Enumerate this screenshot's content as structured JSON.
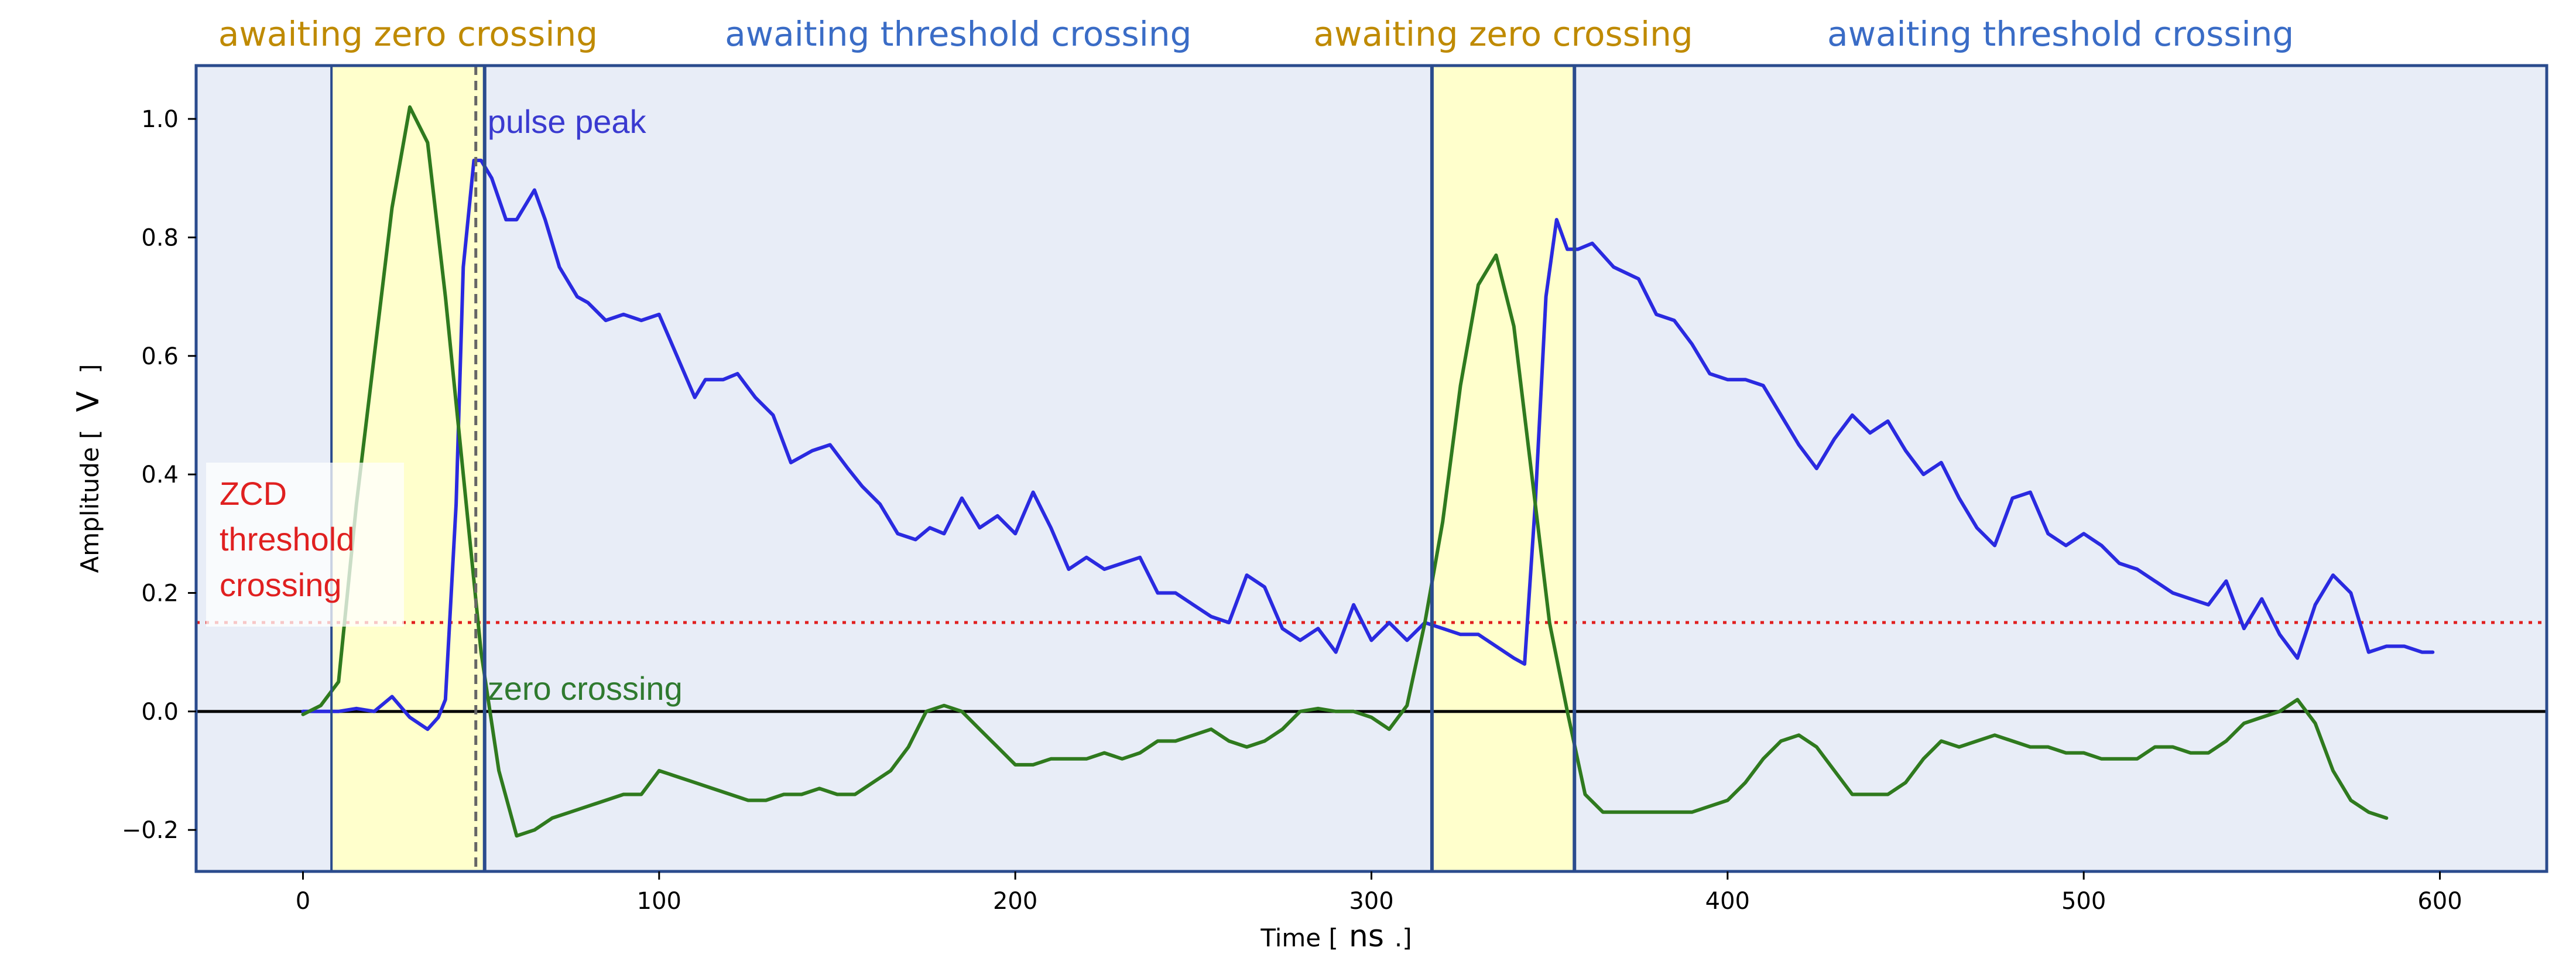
{
  "chart_data": {
    "type": "line",
    "xlabel_prefix": "Time [",
    "xlabel_unit": "ns",
    "xlabel_suffix": ".]",
    "ylabel_prefix": "Amplitude [",
    "ylabel_unit": "V",
    "ylabel_suffix": "]",
    "xlim": [
      -30,
      630
    ],
    "ylim": [
      -0.27,
      1.09
    ],
    "xticks": [
      0,
      100,
      200,
      300,
      400,
      500,
      600
    ],
    "yticks": [
      -0.2,
      0.0,
      0.2,
      0.4,
      0.6,
      0.8,
      1.0
    ],
    "ytick_labels": [
      "−0.2",
      "0.0",
      "0.2",
      "0.4",
      "0.6",
      "0.8",
      "1.0"
    ],
    "threshold": 0.15,
    "zero_line": 0.0,
    "colors": {
      "background": "#e8edf7",
      "highlight": "#ffffcc",
      "frame": "#2a4b8d",
      "blue_series": "#2a2ae0",
      "green_series": "#2f7a1e",
      "threshold": "#e02020",
      "zero_line": "#000000",
      "zero_state": "#bf8a00",
      "threshold_state": "#3a6cc6",
      "pulse_peak": "#3a3ad0",
      "zero_crossing": "#2f7a2f",
      "zcd": "#e02020"
    },
    "state_bands": [
      {
        "label": "awaiting zero crossing",
        "from": 8,
        "to": 51,
        "highlight": true,
        "kind": "zero"
      },
      {
        "label": "awaiting threshold crossing",
        "from": 51,
        "to": 317,
        "highlight": false,
        "kind": "threshold"
      },
      {
        "label": "awaiting zero crossing",
        "from": 317,
        "to": 357,
        "highlight": true,
        "kind": "zero"
      },
      {
        "label": "awaiting threshold crossing",
        "from": 357,
        "to": 630,
        "highlight": false,
        "kind": "threshold"
      }
    ],
    "vertical_lines": [
      8,
      51,
      317,
      357
    ],
    "dashed_line": 50.5,
    "annotations": {
      "pulse_peak": "pulse peak",
      "zero_crossing": "zero crossing",
      "zcd_line1": "ZCD",
      "zcd_line2": "threshold",
      "zcd_line3": "crossing"
    },
    "series": [
      {
        "color_key": "blue_series",
        "x": [
          0,
          10,
          15,
          20,
          25,
          30,
          35,
          38,
          40,
          43,
          45,
          48,
          50,
          53,
          57,
          60,
          65,
          68,
          72,
          77,
          80,
          85,
          90,
          95,
          100,
          105,
          110,
          113,
          118,
          122,
          127,
          132,
          137,
          143,
          148,
          153,
          157,
          162,
          167,
          172,
          176,
          180,
          185,
          190,
          195,
          200,
          205,
          210,
          215,
          220,
          225,
          230,
          235,
          240,
          245,
          250,
          255,
          260,
          265,
          270,
          275,
          280,
          285,
          290,
          295,
          300,
          305,
          310,
          315,
          320,
          325,
          330,
          335,
          340,
          343,
          346,
          349,
          352,
          355,
          358,
          362,
          368,
          375,
          380,
          385,
          390,
          395,
          400,
          405,
          410,
          415,
          420,
          425,
          430,
          435,
          440,
          445,
          450,
          455,
          460,
          465,
          470,
          475,
          480,
          485,
          490,
          495,
          500,
          505,
          510,
          515,
          520,
          525,
          530,
          535,
          540,
          545,
          550,
          555,
          560,
          565,
          570,
          575,
          580,
          585,
          590,
          595,
          598
        ],
        "y": [
          0.0,
          0.0,
          0.005,
          0.0,
          0.025,
          -0.01,
          -0.03,
          -0.01,
          0.02,
          0.35,
          0.75,
          0.93,
          0.93,
          0.9,
          0.83,
          0.83,
          0.88,
          0.83,
          0.75,
          0.7,
          0.69,
          0.66,
          0.67,
          0.66,
          0.67,
          0.6,
          0.53,
          0.56,
          0.56,
          0.57,
          0.53,
          0.5,
          0.42,
          0.44,
          0.45,
          0.41,
          0.38,
          0.35,
          0.3,
          0.29,
          0.31,
          0.3,
          0.36,
          0.31,
          0.33,
          0.3,
          0.37,
          0.31,
          0.24,
          0.26,
          0.24,
          0.25,
          0.26,
          0.2,
          0.2,
          0.18,
          0.16,
          0.15,
          0.23,
          0.21,
          0.14,
          0.12,
          0.14,
          0.1,
          0.18,
          0.12,
          0.15,
          0.12,
          0.15,
          0.14,
          0.13,
          0.13,
          0.11,
          0.09,
          0.08,
          0.35,
          0.7,
          0.83,
          0.78,
          0.78,
          0.79,
          0.75,
          0.73,
          0.67,
          0.66,
          0.62,
          0.57,
          0.56,
          0.56,
          0.55,
          0.5,
          0.45,
          0.41,
          0.46,
          0.5,
          0.47,
          0.49,
          0.44,
          0.4,
          0.42,
          0.36,
          0.31,
          0.28,
          0.36,
          0.37,
          0.3,
          0.28,
          0.3,
          0.28,
          0.25,
          0.24,
          0.22,
          0.2,
          0.19,
          0.18,
          0.22,
          0.14,
          0.19,
          0.13,
          0.09,
          0.18,
          0.23,
          0.2,
          0.1,
          0.11,
          0.11,
          0.1,
          0.1
        ]
      },
      {
        "color_key": "green_series",
        "x": [
          0,
          5,
          10,
          15,
          20,
          25,
          30,
          35,
          40,
          45,
          50,
          55,
          60,
          65,
          70,
          75,
          80,
          85,
          90,
          95,
          100,
          105,
          110,
          115,
          120,
          125,
          130,
          135,
          140,
          145,
          150,
          155,
          160,
          165,
          170,
          175,
          180,
          185,
          190,
          195,
          200,
          205,
          210,
          215,
          220,
          225,
          230,
          235,
          240,
          245,
          250,
          255,
          260,
          265,
          270,
          275,
          280,
          285,
          290,
          295,
          300,
          305,
          310,
          315,
          320,
          325,
          330,
          335,
          340,
          345,
          350,
          355,
          360,
          365,
          370,
          375,
          380,
          385,
          390,
          395,
          400,
          405,
          410,
          415,
          420,
          425,
          430,
          435,
          440,
          445,
          450,
          455,
          460,
          465,
          470,
          475,
          480,
          485,
          490,
          495,
          500,
          505,
          510,
          515,
          520,
          525,
          530,
          535,
          540,
          545,
          550,
          555,
          560,
          565,
          570,
          575,
          580,
          585
        ],
        "y": [
          -0.005,
          0.01,
          0.05,
          0.35,
          0.6,
          0.85,
          1.02,
          0.96,
          0.7,
          0.4,
          0.1,
          -0.1,
          -0.21,
          -0.2,
          -0.18,
          -0.17,
          -0.16,
          -0.15,
          -0.14,
          -0.14,
          -0.1,
          -0.11,
          -0.12,
          -0.13,
          -0.14,
          -0.15,
          -0.15,
          -0.14,
          -0.14,
          -0.13,
          -0.14,
          -0.14,
          -0.12,
          -0.1,
          -0.06,
          0.0,
          0.01,
          0.0,
          -0.03,
          -0.06,
          -0.09,
          -0.09,
          -0.08,
          -0.08,
          -0.08,
          -0.07,
          -0.08,
          -0.07,
          -0.05,
          -0.05,
          -0.04,
          -0.03,
          -0.05,
          -0.06,
          -0.05,
          -0.03,
          0.0,
          0.005,
          0.0,
          0.0,
          -0.01,
          -0.03,
          0.01,
          0.15,
          0.32,
          0.55,
          0.72,
          0.77,
          0.65,
          0.4,
          0.15,
          0.0,
          -0.14,
          -0.17,
          -0.17,
          -0.17,
          -0.17,
          -0.17,
          -0.17,
          -0.16,
          -0.15,
          -0.12,
          -0.08,
          -0.05,
          -0.04,
          -0.06,
          -0.1,
          -0.14,
          -0.14,
          -0.14,
          -0.12,
          -0.08,
          -0.05,
          -0.06,
          -0.05,
          -0.04,
          -0.05,
          -0.06,
          -0.06,
          -0.07,
          -0.07,
          -0.08,
          -0.08,
          -0.08,
          -0.06,
          -0.06,
          -0.07,
          -0.07,
          -0.05,
          -0.02,
          -0.01,
          0.0,
          0.02,
          -0.02,
          -0.1,
          -0.15,
          -0.17,
          -0.18
        ]
      }
    ]
  }
}
